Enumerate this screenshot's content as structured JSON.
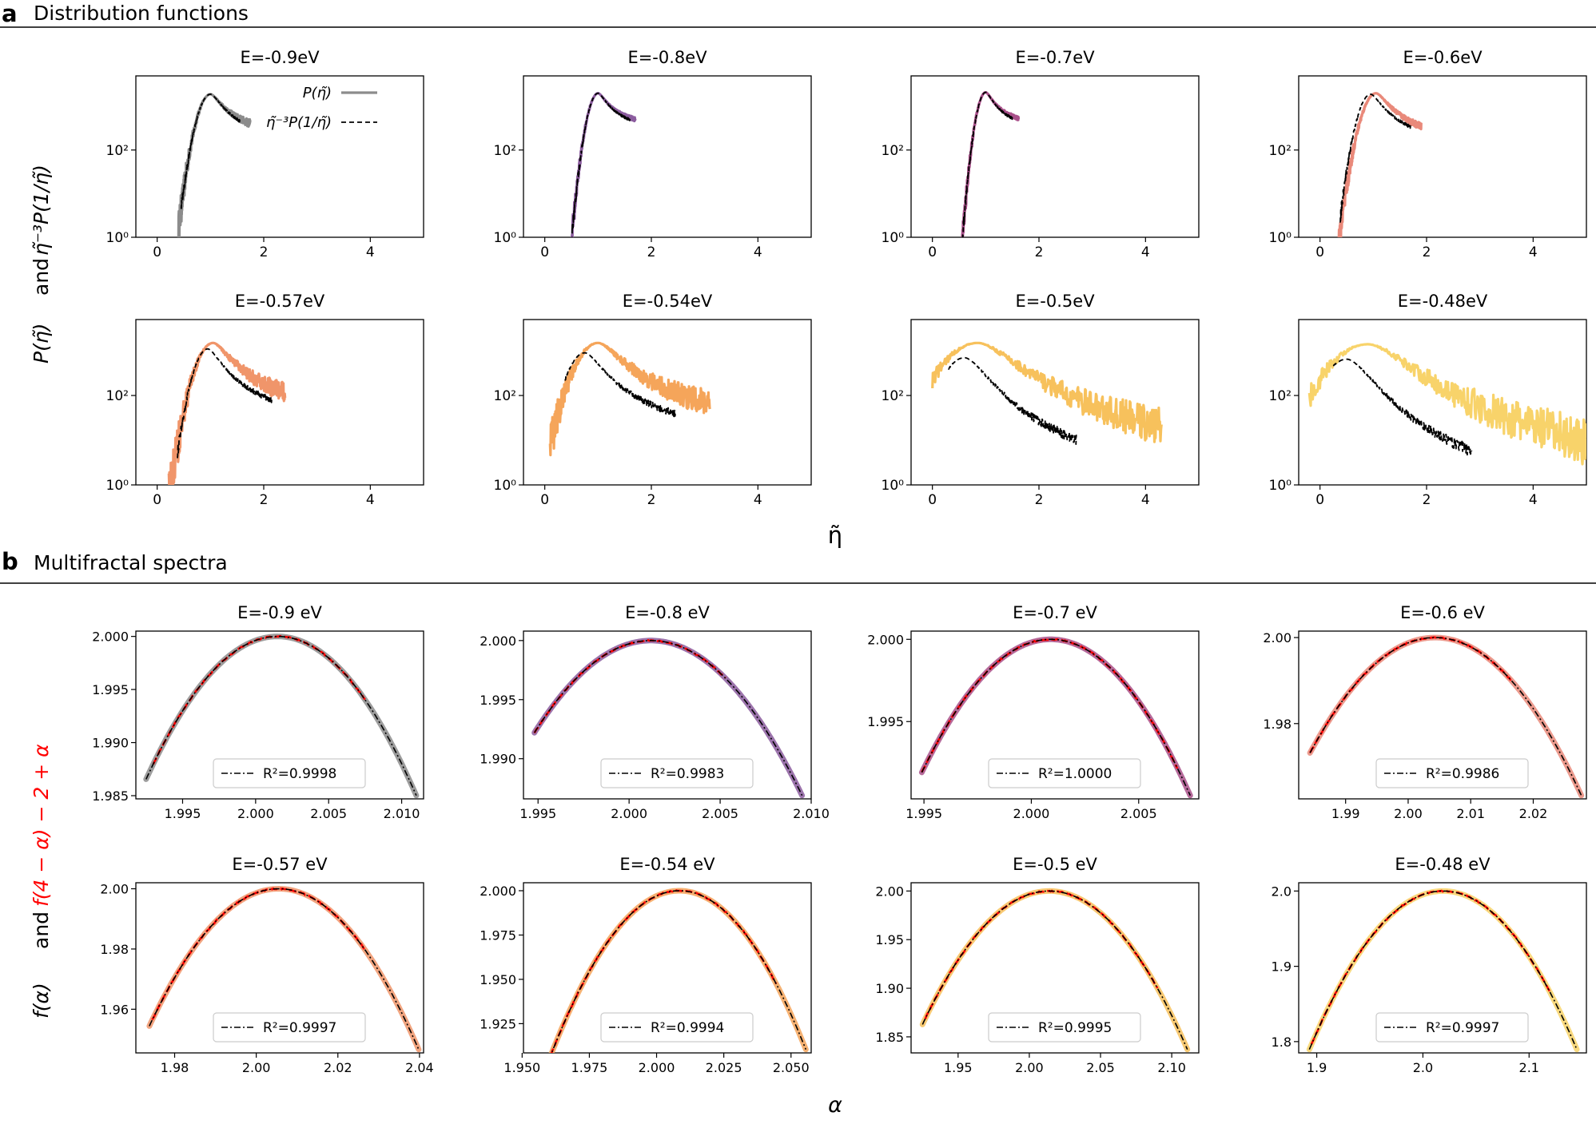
{
  "panel_a": {
    "letter": "a",
    "title": "Distribution functions",
    "ylabel_bottom": "P(η̃)",
    "ylabel_and": "and",
    "ylabel_top": "η̃⁻³P(1/η̃)",
    "xlabel": "η̃",
    "legend": [
      "P(η̃)",
      "η̃⁻³P(1/η̃)"
    ]
  },
  "panel_b": {
    "letter": "b",
    "title": "Multifractal spectra",
    "ylabel_bottom": "f(α)",
    "ylabel_and": "and",
    "ylabel_top": "f(4 − α) − 2 + α",
    "xlabel": "α"
  },
  "colors": {
    "E=-0.9": "#8c8c8c",
    "E=-0.8": "#8b5c9e",
    "E=-0.7": "#a9508a",
    "E=-0.6": "#e9897a",
    "E=-0.57": "#f0956a",
    "E=-0.54": "#f5a55a",
    "E=-0.5": "#f7c15c",
    "E=-0.48": "#f8d36a",
    "mirror": "#000000",
    "spectrum_mirror": "#ff0000",
    "fit": "#000000"
  },
  "chart_data": [
    {
      "type": "line",
      "panel": "a",
      "title": "E=-0.9eV",
      "xlim": [
        -0.4,
        5
      ],
      "ylog": true,
      "ylim": [
        1,
        5000
      ],
      "xticks": [
        "0",
        "2",
        "4"
      ],
      "yticks": [
        "10⁰",
        "10²"
      ],
      "series": [
        {
          "name": "P(η̃)",
          "center": 1.0,
          "width": 0.2,
          "peak": 1900,
          "tail": 0.75,
          "min": 0.4,
          "max": 1.75,
          "noise": 0.25
        },
        {
          "name": "η̃⁻³P(1/η̃)",
          "center": 1.0,
          "width": 0.2,
          "peak": 1900,
          "tail": 0.7,
          "min": 0.45,
          "max": 1.55,
          "noise": 0.1
        }
      ]
    },
    {
      "type": "line",
      "panel": "a",
      "title": "E=-0.8eV",
      "xlim": [
        -0.4,
        5
      ],
      "ylog": true,
      "ylim": [
        1,
        5000
      ],
      "xticks": [
        "0",
        "2",
        "4"
      ],
      "yticks": [
        "10⁰",
        "10²"
      ],
      "series": [
        {
          "name": "P(η̃)",
          "center": 1.0,
          "width": 0.16,
          "peak": 2000,
          "tail": 0.85,
          "min": 0.5,
          "max": 1.7,
          "noise": 0.15
        },
        {
          "name": "η̃⁻³P(1/η̃)",
          "center": 1.0,
          "width": 0.16,
          "peak": 2000,
          "tail": 0.8,
          "min": 0.5,
          "max": 1.6,
          "noise": 0.1
        }
      ]
    },
    {
      "type": "line",
      "panel": "a",
      "title": "E=-0.7eV",
      "xlim": [
        -0.4,
        5
      ],
      "ylog": true,
      "ylim": [
        1,
        5000
      ],
      "xticks": [
        "0",
        "2",
        "4"
      ],
      "yticks": [
        "10⁰",
        "10²"
      ],
      "series": [
        {
          "name": "P(η̃)",
          "center": 1.0,
          "width": 0.14,
          "peak": 2100,
          "tail": 0.85,
          "min": 0.5,
          "max": 1.62,
          "noise": 0.15
        },
        {
          "name": "η̃⁻³P(1/η̃)",
          "center": 1.0,
          "width": 0.14,
          "peak": 2100,
          "tail": 0.8,
          "min": 0.5,
          "max": 1.5,
          "noise": 0.1
        }
      ]
    },
    {
      "type": "line",
      "panel": "a",
      "title": "E=-0.6eV",
      "xlim": [
        -0.4,
        5
      ],
      "ylog": true,
      "ylim": [
        1,
        5000
      ],
      "xticks": [
        "0",
        "2",
        "4"
      ],
      "yticks": [
        "10⁰",
        "10²"
      ],
      "series": [
        {
          "name": "P(η̃)",
          "center": 1.05,
          "width": 0.22,
          "peak": 2000,
          "tail": 0.7,
          "min": 0.28,
          "max": 1.9,
          "noise": 0.2
        },
        {
          "name": "η̃⁻³P(1/η̃)",
          "center": 0.95,
          "width": 0.2,
          "peak": 1900,
          "tail": 0.7,
          "min": 0.38,
          "max": 1.7,
          "noise": 0.1
        }
      ]
    },
    {
      "type": "line",
      "panel": "a",
      "title": "E=-0.57eV",
      "xlim": [
        -0.4,
        5
      ],
      "ylog": true,
      "ylim": [
        1,
        5000
      ],
      "xticks": [
        "0",
        "2",
        "4"
      ],
      "yticks": [
        "10⁰",
        "10²"
      ],
      "series": [
        {
          "name": "P(η̃)",
          "center": 1.05,
          "width": 0.26,
          "peak": 1500,
          "tail": 0.6,
          "min": 0.22,
          "max": 2.4,
          "noise": 0.35
        },
        {
          "name": "η̃⁻³P(1/η̃)",
          "center": 0.95,
          "width": 0.22,
          "peak": 1100,
          "tail": 0.6,
          "min": 0.38,
          "max": 2.15,
          "noise": 0.1
        }
      ]
    },
    {
      "type": "line",
      "panel": "a",
      "title": "E=-0.54eV",
      "xlim": [
        -0.4,
        5
      ],
      "ylog": true,
      "ylim": [
        1,
        5000
      ],
      "xticks": [
        "0",
        "2",
        "4"
      ],
      "yticks": [
        "10⁰",
        "10²"
      ],
      "series": [
        {
          "name": "P(η̃)",
          "center": 1.0,
          "width": 0.35,
          "peak": 1500,
          "tail": 0.55,
          "min": 0.1,
          "max": 3.1,
          "noise": 0.4
        },
        {
          "name": "η̃⁻³P(1/η̃)",
          "center": 0.75,
          "width": 0.28,
          "peak": 900,
          "tail": 0.55,
          "min": 0.38,
          "max": 2.45,
          "noise": 0.1
        }
      ]
    },
    {
      "type": "line",
      "panel": "a",
      "title": "E=-0.5eV",
      "xlim": [
        -0.4,
        5
      ],
      "ylog": true,
      "ylim": [
        1,
        5000
      ],
      "xticks": [
        "0",
        "2",
        "4"
      ],
      "yticks": [
        "10⁰",
        "10²"
      ],
      "series": [
        {
          "name": "P(η̃)",
          "center": 0.85,
          "width": 0.55,
          "peak": 1500,
          "tail": 0.45,
          "min": 0.0,
          "max": 4.3,
          "noise": 0.4
        },
        {
          "name": "η̃⁻³P(1/η̃)",
          "center": 0.6,
          "width": 0.35,
          "peak": 700,
          "tail": 0.45,
          "min": 0.3,
          "max": 2.7,
          "noise": 0.1
        }
      ]
    },
    {
      "type": "line",
      "panel": "a",
      "title": "E=-0.48eV",
      "xlim": [
        -0.4,
        5
      ],
      "ylog": true,
      "ylim": [
        1,
        5000
      ],
      "xticks": [
        "0",
        "2",
        "4"
      ],
      "yticks": [
        "10⁰",
        "10²"
      ],
      "series": [
        {
          "name": "P(η̃)",
          "center": 0.9,
          "width": 0.6,
          "peak": 1400,
          "tail": 0.42,
          "min": -0.2,
          "max": 5.0,
          "noise": 0.45
        },
        {
          "name": "η̃⁻³P(1/η̃)",
          "center": 0.5,
          "width": 0.38,
          "peak": 650,
          "tail": 0.42,
          "min": 0.25,
          "max": 2.85,
          "noise": 0.1
        }
      ]
    },
    {
      "type": "line",
      "panel": "b",
      "title": "E=-0.9 eV",
      "xlim": [
        1.9918,
        2.0115
      ],
      "ylim": [
        1.9847,
        2.0005
      ],
      "xticks": [
        1.995,
        2.0,
        2.005,
        2.01
      ],
      "xtick_labels": [
        "1.995",
        "2.000",
        "2.005",
        "2.010"
      ],
      "yticks": [
        1.985,
        1.99,
        1.995,
        2.0
      ],
      "ytick_labels": [
        "1.985",
        "1.990",
        "1.995",
        "2.000"
      ],
      "alpha_range": [
        1.9925,
        2.011
      ],
      "alpha0": 2.0015,
      "mirror_range": [
        1.993,
        2.0075
      ],
      "legend": "R²=0.9998",
      "series": [
        {
          "name": "f(α)"
        },
        {
          "name": "f(4−α)−2+α"
        },
        {
          "name": "fit"
        }
      ]
    },
    {
      "type": "line",
      "panel": "b",
      "title": "E=-0.8 eV",
      "xlim": [
        1.9942,
        2.01
      ],
      "ylim": [
        1.9866,
        2.0008
      ],
      "xticks": [
        1.995,
        2.0,
        2.005,
        2.01
      ],
      "xtick_labels": [
        "1.995",
        "2.000",
        "2.005",
        "2.010"
      ],
      "yticks": [
        1.99,
        1.995,
        2.0
      ],
      "ytick_labels": [
        "1.990",
        "1.995",
        "2.000"
      ],
      "alpha_range": [
        1.9948,
        2.0095
      ],
      "alpha0": 2.0012,
      "mirror_range": [
        1.9948,
        2.0053
      ],
      "legend": "R²=0.9983",
      "series": [
        {
          "name": "f(α)"
        },
        {
          "name": "f(4−α)−2+α"
        },
        {
          "name": "fit"
        }
      ]
    },
    {
      "type": "line",
      "panel": "b",
      "title": "E=-0.7 eV",
      "xlim": [
        1.9944,
        2.0078
      ],
      "ylim": [
        1.9903,
        2.0005
      ],
      "xticks": [
        1.995,
        2.0,
        2.005
      ],
      "xtick_labels": [
        "1.995",
        "2.000",
        "2.005"
      ],
      "yticks": [
        1.995,
        2.0
      ],
      "ytick_labels": [
        "1.995",
        "2.000"
      ],
      "alpha_range": [
        1.9949,
        2.0074
      ],
      "alpha0": 2.0009,
      "mirror_range": [
        1.9949,
        2.0068
      ],
      "legend": "R²=1.0000",
      "series": [
        {
          "name": "f(α)"
        },
        {
          "name": "f(4−α)−2+α"
        },
        {
          "name": "fit"
        }
      ]
    },
    {
      "type": "line",
      "panel": "b",
      "title": "E=-0.6 eV",
      "xlim": [
        1.9825,
        2.0285
      ],
      "ylim": [
        1.9625,
        2.0015
      ],
      "xticks": [
        1.99,
        2.0,
        2.01,
        2.02
      ],
      "xtick_labels": [
        "1.99",
        "2.00",
        "2.01",
        "2.02"
      ],
      "yticks": [
        1.98,
        2.0
      ],
      "ytick_labels": [
        "1.98",
        "2.00"
      ],
      "alpha_range": [
        1.9843,
        2.0277
      ],
      "alpha0": 2.0043,
      "mirror_range": [
        1.9843,
        2.0165
      ],
      "legend": "R²=0.9986",
      "series": [
        {
          "name": "f(α)"
        },
        {
          "name": "f(4−α)−2+α"
        },
        {
          "name": "fit"
        }
      ]
    },
    {
      "type": "line",
      "panel": "b",
      "title": "E=-0.57 eV",
      "xlim": [
        1.9705,
        2.041
      ],
      "ylim": [
        1.9455,
        2.002
      ],
      "xticks": [
        1.98,
        2.0,
        2.02,
        2.04
      ],
      "xtick_labels": [
        "1.98",
        "2.00",
        "2.02",
        "2.04"
      ],
      "yticks": [
        1.96,
        1.98,
        2.0
      ],
      "ytick_labels": [
        "1.96",
        "1.98",
        "2.00"
      ],
      "alpha_range": [
        1.9738,
        2.0398
      ],
      "alpha0": 2.0055,
      "mirror_range": [
        1.9745,
        2.0265
      ],
      "legend": "R²=0.9997",
      "series": [
        {
          "name": "f(α)"
        },
        {
          "name": "f(4−α)−2+α"
        },
        {
          "name": "fit"
        }
      ]
    },
    {
      "type": "line",
      "panel": "b",
      "title": "E=-0.54 eV",
      "xlim": [
        1.9505,
        2.0575
      ],
      "ylim": [
        1.9085,
        2.0045
      ],
      "xticks": [
        1.95,
        1.975,
        2.0,
        2.025,
        2.05
      ],
      "xtick_labels": [
        "1.950",
        "1.975",
        "2.000",
        "2.025",
        "2.050"
      ],
      "yticks": [
        1.925,
        1.95,
        1.975,
        2.0
      ],
      "ytick_labels": [
        "1.925",
        "1.950",
        "1.975",
        "2.000"
      ],
      "alpha_range": [
        1.9535,
        2.0555
      ],
      "alpha0": 2.0085,
      "mirror_range": [
        1.954,
        2.0445
      ],
      "legend": "R²=0.9994",
      "series": [
        {
          "name": "f(α)"
        },
        {
          "name": "f(4−α)−2+α"
        },
        {
          "name": "fit"
        }
      ]
    },
    {
      "type": "line",
      "panel": "b",
      "title": "E=-0.5 eV",
      "xlim": [
        1.917,
        2.119
      ],
      "ylim": [
        1.8335,
        2.0085
      ],
      "xticks": [
        1.95,
        2.0,
        2.05,
        2.1
      ],
      "xtick_labels": [
        "1.95",
        "2.00",
        "2.05",
        "2.10"
      ],
      "yticks": [
        1.85,
        1.9,
        1.95,
        2.0
      ],
      "ytick_labels": [
        "1.85",
        "1.90",
        "1.95",
        "2.00"
      ],
      "alpha_range": [
        1.925,
        2.111
      ],
      "alpha0": 2.014,
      "mirror_range": [
        1.927,
        2.09
      ],
      "legend": "R²=0.9995",
      "series": [
        {
          "name": "f(α)"
        },
        {
          "name": "f(4−α)−2+α"
        },
        {
          "name": "fit"
        }
      ]
    },
    {
      "type": "line",
      "panel": "b",
      "title": "E=-0.48 eV",
      "xlim": [
        1.883,
        2.154
      ],
      "ylim": [
        1.785,
        2.011
      ],
      "xticks": [
        1.9,
        2.0,
        2.1
      ],
      "xtick_labels": [
        "1.9",
        "2.0",
        "2.1"
      ],
      "yticks": [
        1.8,
        1.9,
        2.0
      ],
      "ytick_labels": [
        "1.8",
        "1.9",
        "2.0"
      ],
      "alpha_range": [
        1.893,
        2.145
      ],
      "alpha0": 2.019,
      "mirror_range": [
        1.895,
        2.12
      ],
      "legend": "R²=0.9997",
      "series": [
        {
          "name": "f(α)"
        },
        {
          "name": "f(4−α)−2+α"
        },
        {
          "name": "fit"
        }
      ]
    }
  ]
}
